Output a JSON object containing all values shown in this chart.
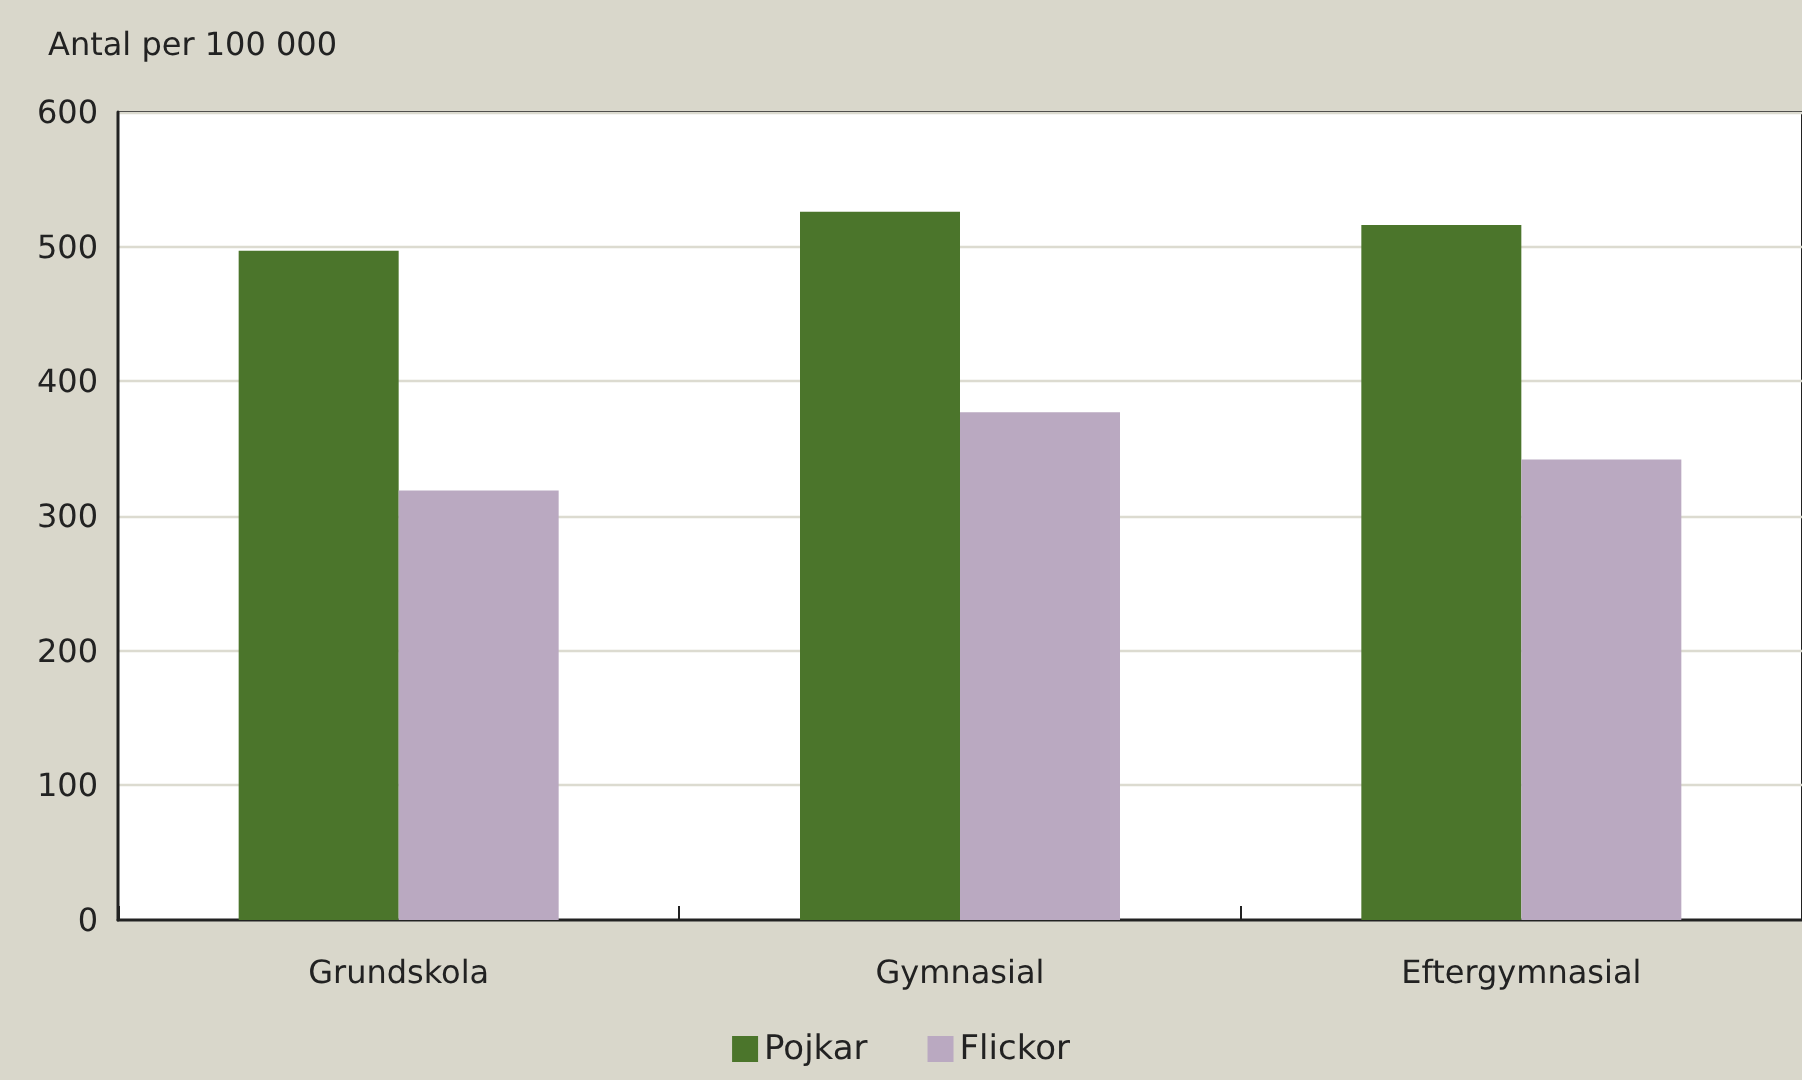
{
  "chart_data": {
    "type": "bar",
    "ylabel": "Antal per 100 000",
    "categories": [
      "Grundskola",
      "Gymnasial",
      "Eftergymnasial"
    ],
    "series": [
      {
        "name": "Pojkar",
        "color": "#4b752b",
        "values": [
          497,
          526,
          516
        ]
      },
      {
        "name": "Flickor",
        "color": "#baa9c1",
        "values": [
          319,
          377,
          342
        ]
      }
    ],
    "ylim": [
      0,
      600
    ],
    "yticks": [
      0,
      100,
      200,
      300,
      400,
      500,
      600
    ],
    "grid": "y",
    "legend": "bottom"
  }
}
